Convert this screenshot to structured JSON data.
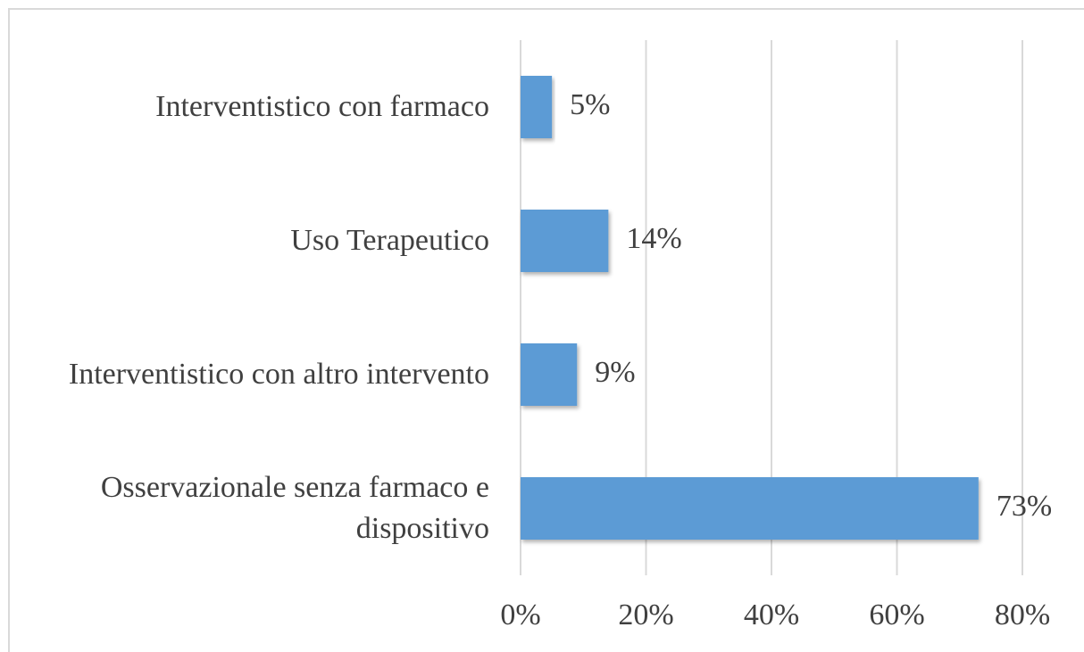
{
  "chart_data": {
    "type": "bar",
    "orientation": "horizontal",
    "categories": [
      "Interventistico con farmaco",
      "Uso Terapeutico",
      "Interventistico con altro intervento",
      "Osservazionale senza farmaco e dispositivo"
    ],
    "values": [
      5,
      14,
      9,
      73
    ],
    "value_labels": [
      "5%",
      "14%",
      "9%",
      "73%"
    ],
    "color": "#5b9bd5",
    "xlim": [
      0,
      80
    ],
    "xticks": [
      {
        "value": 0,
        "label": "0%"
      },
      {
        "value": 20,
        "label": "20%"
      },
      {
        "value": 40,
        "label": "40%"
      },
      {
        "value": 60,
        "label": "60%"
      },
      {
        "value": 80,
        "label": "80%"
      }
    ],
    "grid": true
  }
}
